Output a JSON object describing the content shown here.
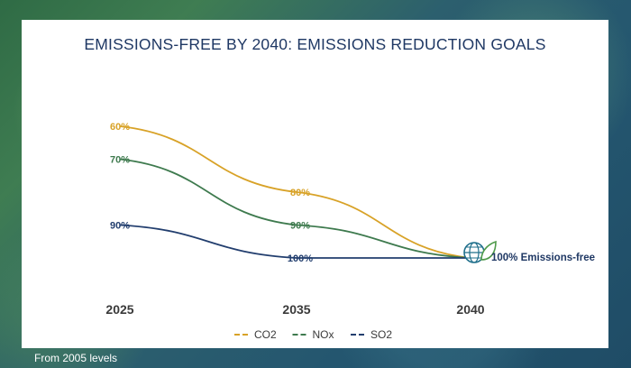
{
  "title": "EMISSIONS-FREE BY 2040: EMISSIONS REDUCTION GOALS",
  "footnote": "From 2005 levels",
  "end_annotation": "100% Emissions-free",
  "end_icon": "globe-leaf-icon",
  "chart_data": {
    "type": "line",
    "title": "EMISSIONS-FREE BY 2040: EMISSIONS REDUCTION GOALS",
    "x": [
      "2025",
      "2035",
      "2040"
    ],
    "xlabel": "",
    "ylabel": "",
    "grid": false,
    "legend_position": "bottom-center",
    "series": [
      {
        "name": "CO2",
        "color": "#d8a227",
        "values": [
          60,
          80,
          100
        ],
        "labels": [
          "60%",
          "80%",
          ""
        ]
      },
      {
        "name": "NOx",
        "color": "#3e7a4e",
        "values": [
          70,
          90,
          100
        ],
        "labels": [
          "70%",
          "90%",
          ""
        ]
      },
      {
        "name": "SO2",
        "color": "#223e6e",
        "values": [
          90,
          100,
          100
        ],
        "labels": [
          "90%",
          "100%",
          ""
        ]
      }
    ]
  }
}
